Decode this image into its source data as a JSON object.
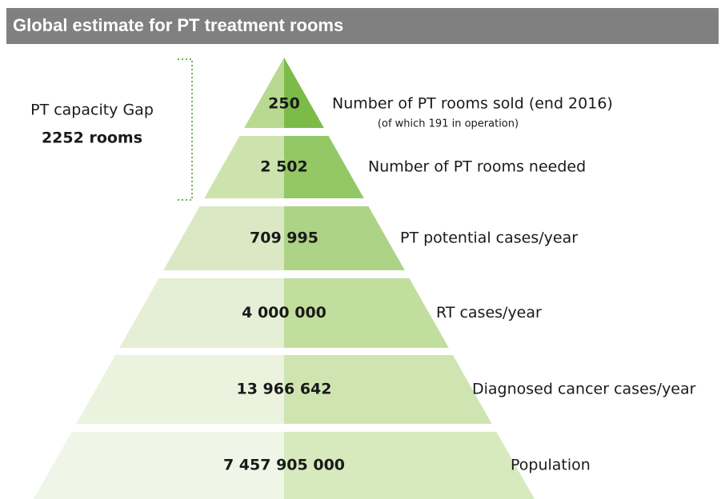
{
  "header": {
    "title": "Global estimate for PT treatment rooms"
  },
  "gap": {
    "label": "PT capacity Gap",
    "value": "2252 rooms"
  },
  "levels": [
    {
      "value": "250",
      "label": "Number of PT rooms sold (end 2016)",
      "note": "(of which 191 in operation)"
    },
    {
      "value": "2 502",
      "label": "Number of PT rooms needed"
    },
    {
      "value": "709 995",
      "label": "PT potential cases/year"
    },
    {
      "value": "4 000 000",
      "label": "RT cases/year"
    },
    {
      "value": "13 966 642",
      "label": "Diagnosed cancer cases/year"
    },
    {
      "value": "7 457 905 000",
      "label": "Population"
    }
  ]
}
